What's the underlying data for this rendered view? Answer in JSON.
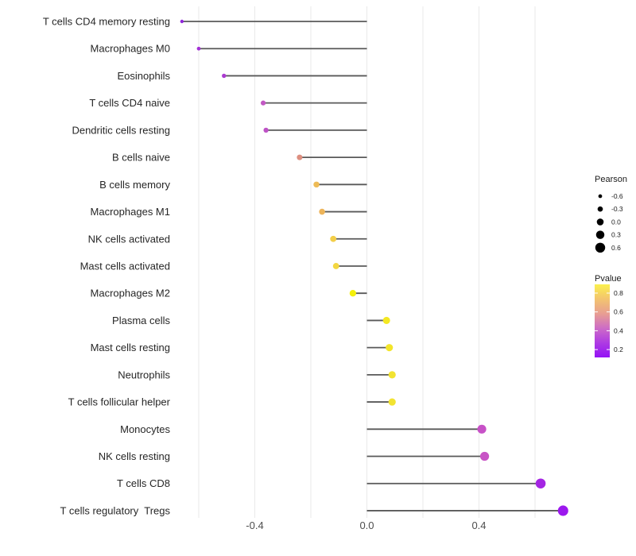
{
  "chart_data": {
    "type": "scatter",
    "variant": "lollipop",
    "title": "",
    "xlabel": "",
    "ylabel": "",
    "categories": [
      "T cells CD4 memory resting",
      "Macrophages M0",
      "Eosinophils",
      "T cells CD4 naive",
      "Dendritic cells resting",
      "B cells naive",
      "B cells memory",
      "Macrophages M1",
      "NK cells activated",
      "Mast cells activated",
      "Macrophages M2",
      "Plasma cells",
      "Mast cells resting",
      "Neutrophils",
      "T cells follicular helper",
      "Monocytes",
      "NK cells resting",
      "T cells CD8",
      "T cells regulatory  Tregs"
    ],
    "series": [
      {
        "name": "Pearson",
        "values": [
          -0.66,
          -0.6,
          -0.51,
          -0.37,
          -0.36,
          -0.24,
          -0.18,
          -0.16,
          -0.12,
          -0.11,
          -0.05,
          0.07,
          0.08,
          0.09,
          0.09,
          0.41,
          0.42,
          0.62,
          0.7
        ]
      }
    ],
    "point_colors": [
      "#8F25DA",
      "#A331D6",
      "#AC3BD1",
      "#C258C3",
      "#BE52C6",
      "#DD8F80",
      "#EEBB55",
      "#EDB45A",
      "#F3CE49",
      "#F3D741",
      "#F4F00A",
      "#F4E822",
      "#F3E52A",
      "#F2E331",
      "#F2E331",
      "#C751C7",
      "#C854C6",
      "#A425E3",
      "#9C18EE"
    ],
    "xlim": [
      -0.72,
      0.76
    ],
    "x_tick_labels": [
      "-0.4",
      "0.0",
      "0.4"
    ],
    "x_tick_values": [
      -0.4,
      0.0,
      0.4
    ],
    "gridline_values": [
      -0.6,
      -0.4,
      -0.2,
      0.0,
      0.2,
      0.4,
      0.6
    ],
    "grid": "vertical-only",
    "legend_position": "right",
    "legends": {
      "size": {
        "title": "Pearson",
        "entries": [
          {
            "label": "-0.6",
            "value": -0.6
          },
          {
            "label": "-0.3",
            "value": -0.3
          },
          {
            "label": "0.0",
            "value": 0.0
          },
          {
            "label": "0.3",
            "value": 0.3
          },
          {
            "label": "0.6",
            "value": 0.6
          }
        ]
      },
      "color": {
        "title": "Pvalue",
        "tick_labels": [
          "0.8",
          "0.6",
          "0.4",
          "0.2"
        ],
        "tick_values": [
          0.8,
          0.6,
          0.4,
          0.2
        ],
        "gradient_stops": [
          "#FBF04D",
          "#F3C46F",
          "#E89E92",
          "#CD6CC6",
          "#AE3BE3",
          "#9412F5"
        ]
      }
    },
    "colors": {
      "stem": "#595959",
      "grid": "#e9e9e9",
      "axis_text": "#4d4d4d",
      "category_text": "#262626",
      "legend_text": "#1a1a1a",
      "legend_dot": "#000000",
      "background": "#ffffff"
    }
  }
}
